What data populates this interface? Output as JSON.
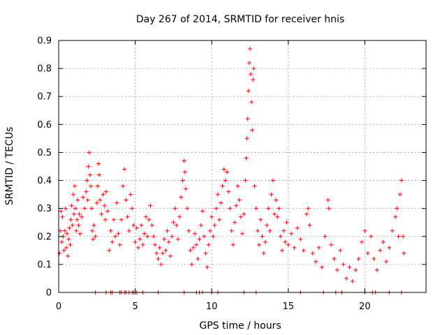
{
  "chart_data": {
    "type": "scatter",
    "title": "Day 267 of 2014, SRMTID for receiver hnis",
    "xlabel": "GPS time / hours",
    "ylabel": "SRMTID / TECUs",
    "xlim": [
      0,
      24
    ],
    "ylim": [
      0,
      0.9
    ],
    "xticks": [
      0,
      5,
      10,
      15,
      20
    ],
    "yticks": [
      0,
      0.1,
      0.2,
      0.3,
      0.4,
      0.5,
      0.6,
      0.7,
      0.8,
      0.9
    ],
    "xtick_labels": [
      "0",
      "5",
      "10",
      "15",
      "20"
    ],
    "ytick_labels": [
      "0",
      "0.1",
      "0.2",
      "0.3",
      "0.4",
      "0.5",
      "0.6",
      "0.7",
      "0.8",
      "0.9"
    ],
    "grid": true,
    "marker": "plus",
    "color": "#ff0000",
    "series": [
      {
        "name": "SRMTID",
        "points": [
          [
            0.05,
            0.14
          ],
          [
            0.1,
            0.22
          ],
          [
            0.15,
            0.29
          ],
          [
            0.2,
            0.18
          ],
          [
            0.25,
            0.27
          ],
          [
            0.3,
            0.2
          ],
          [
            0.35,
            0.15
          ],
          [
            0.4,
            0.22
          ],
          [
            0.45,
            0.3
          ],
          [
            0.5,
            0.16
          ],
          [
            0.55,
            0.21
          ],
          [
            0.6,
            0.13
          ],
          [
            0.65,
            0.19
          ],
          [
            0.7,
            0.23
          ],
          [
            0.75,
            0.17
          ],
          [
            0.8,
            0.26
          ],
          [
            0.85,
            0.31
          ],
          [
            0.9,
            0.24
          ],
          [
            0.95,
            0.35
          ],
          [
            1.0,
            0.28
          ],
          [
            1.05,
            0.38
          ],
          [
            1.1,
            0.3
          ],
          [
            1.15,
            0.22
          ],
          [
            1.2,
            0.26
          ],
          [
            1.25,
            0.33
          ],
          [
            1.3,
            0.24
          ],
          [
            1.35,
            0.28
          ],
          [
            1.4,
            0.21
          ],
          [
            1.5,
            0.27
          ],
          [
            1.6,
            0.34
          ],
          [
            1.7,
            0.3
          ],
          [
            1.8,
            0.36
          ],
          [
            1.85,
            0.4
          ],
          [
            1.9,
            0.33
          ],
          [
            1.95,
            0.45
          ],
          [
            2.0,
            0.5
          ],
          [
            2.05,
            0.42
          ],
          [
            2.1,
            0.38
          ],
          [
            2.15,
            0.3
          ],
          [
            2.2,
            0.22
          ],
          [
            2.25,
            0.19
          ],
          [
            2.3,
            0.24
          ],
          [
            2.4,
            0.2
          ],
          [
            2.5,
            0.32
          ],
          [
            2.55,
            0.38
          ],
          [
            2.6,
            0.46
          ],
          [
            2.65,
            0.42
          ],
          [
            2.7,
            0.33
          ],
          [
            2.8,
            0.28
          ],
          [
            2.9,
            0.35
          ],
          [
            3.0,
            0.31
          ],
          [
            3.05,
            0.26
          ],
          [
            3.1,
            0.36
          ],
          [
            3.2,
            0.29
          ],
          [
            3.3,
            0.15
          ],
          [
            3.4,
            0.22
          ],
          [
            3.5,
            0.18
          ],
          [
            3.6,
            0.26
          ],
          [
            3.7,
            0.2
          ],
          [
            3.8,
            0.32
          ],
          [
            3.9,
            0.21
          ],
          [
            4.0,
            0.17
          ],
          [
            4.1,
            0.26
          ],
          [
            4.2,
            0.38
          ],
          [
            4.3,
            0.44
          ],
          [
            4.4,
            0.33
          ],
          [
            4.5,
            0.27
          ],
          [
            4.6,
            0.22
          ],
          [
            4.7,
            0.35
          ],
          [
            4.8,
            0.3
          ],
          [
            4.9,
            0.24
          ],
          [
            5.0,
            0.18
          ],
          [
            5.1,
            0.23
          ],
          [
            5.2,
            0.16
          ],
          [
            5.3,
            0.19
          ],
          [
            5.4,
            0.24
          ],
          [
            5.5,
            0.17
          ],
          [
            5.6,
            0.21
          ],
          [
            5.7,
            0.27
          ],
          [
            5.8,
            0.2
          ],
          [
            5.9,
            0.26
          ],
          [
            6.0,
            0.31
          ],
          [
            6.1,
            0.24
          ],
          [
            6.2,
            0.2
          ],
          [
            6.3,
            0.17
          ],
          [
            6.4,
            0.14
          ],
          [
            6.5,
            0.12
          ],
          [
            6.6,
            0.16
          ],
          [
            6.7,
            0.1
          ],
          [
            6.8,
            0.14
          ],
          [
            6.9,
            0.19
          ],
          [
            7.0,
            0.15
          ],
          [
            7.1,
            0.22
          ],
          [
            7.2,
            0.18
          ],
          [
            7.3,
            0.13
          ],
          [
            7.4,
            0.2
          ],
          [
            7.5,
            0.25
          ],
          [
            7.6,
            0.3
          ],
          [
            7.7,
            0.24
          ],
          [
            7.8,
            0.19
          ],
          [
            7.9,
            0.27
          ],
          [
            8.0,
            0.34
          ],
          [
            8.1,
            0.4
          ],
          [
            8.2,
            0.47
          ],
          [
            8.25,
            0.43
          ],
          [
            8.3,
            0.37
          ],
          [
            8.4,
            0.3
          ],
          [
            8.5,
            0.22
          ],
          [
            8.6,
            0.15
          ],
          [
            8.7,
            0.1
          ],
          [
            8.8,
            0.16
          ],
          [
            8.9,
            0.21
          ],
          [
            9.0,
            0.17
          ],
          [
            9.1,
            0.12
          ],
          [
            9.2,
            0.19
          ],
          [
            9.3,
            0.24
          ],
          [
            9.4,
            0.29
          ],
          [
            9.5,
            0.2
          ],
          [
            9.6,
            0.14
          ],
          [
            9.7,
            0.09
          ],
          [
            9.8,
            0.17
          ],
          [
            9.9,
            0.22
          ],
          [
            10.0,
            0.27
          ],
          [
            10.1,
            0.2
          ],
          [
            10.2,
            0.24
          ],
          [
            10.3,
            0.3
          ],
          [
            10.4,
            0.35
          ],
          [
            10.5,
            0.26
          ],
          [
            10.6,
            0.32
          ],
          [
            10.7,
            0.38
          ],
          [
            10.8,
            0.44
          ],
          [
            10.9,
            0.4
          ],
          [
            11.0,
            0.43
          ],
          [
            11.1,
            0.36
          ],
          [
            11.2,
            0.3
          ],
          [
            11.3,
            0.22
          ],
          [
            11.4,
            0.17
          ],
          [
            11.5,
            0.25
          ],
          [
            11.6,
            0.31
          ],
          [
            11.7,
            0.38
          ],
          [
            11.8,
            0.33
          ],
          [
            11.9,
            0.27
          ],
          [
            12.0,
            0.21
          ],
          [
            12.1,
            0.28
          ],
          [
            12.2,
            0.4
          ],
          [
            12.25,
            0.48
          ],
          [
            12.3,
            0.55
          ],
          [
            12.35,
            0.62
          ],
          [
            12.4,
            0.72
          ],
          [
            12.45,
            0.82
          ],
          [
            12.5,
            0.87
          ],
          [
            12.55,
            0.78
          ],
          [
            12.6,
            0.68
          ],
          [
            12.65,
            0.58
          ],
          [
            12.7,
            0.76
          ],
          [
            12.75,
            0.8
          ],
          [
            12.8,
            0.38
          ],
          [
            12.9,
            0.3
          ],
          [
            13.0,
            0.22
          ],
          [
            13.1,
            0.17
          ],
          [
            13.2,
            0.26
          ],
          [
            13.3,
            0.2
          ],
          [
            13.4,
            0.14
          ],
          [
            13.5,
            0.18
          ],
          [
            13.6,
            0.24
          ],
          [
            13.7,
            0.3
          ],
          [
            13.8,
            0.22
          ],
          [
            13.9,
            0.35
          ],
          [
            14.0,
            0.4
          ],
          [
            14.1,
            0.28
          ],
          [
            14.2,
            0.33
          ],
          [
            14.3,
            0.27
          ],
          [
            14.4,
            0.3
          ],
          [
            14.5,
            0.2
          ],
          [
            14.6,
            0.15
          ],
          [
            14.7,
            0.22
          ],
          [
            14.8,
            0.18
          ],
          [
            14.9,
            0.25
          ],
          [
            15.0,
            0.17
          ],
          [
            15.2,
            0.21
          ],
          [
            15.4,
            0.16
          ],
          [
            15.6,
            0.23
          ],
          [
            15.8,
            0.19
          ],
          [
            16.0,
            0.15
          ],
          [
            16.2,
            0.28
          ],
          [
            16.3,
            0.3
          ],
          [
            16.4,
            0.24
          ],
          [
            16.6,
            0.14
          ],
          [
            16.8,
            0.11
          ],
          [
            17.0,
            0.16
          ],
          [
            17.2,
            0.09
          ],
          [
            17.4,
            0.2
          ],
          [
            17.6,
            0.33
          ],
          [
            17.65,
            0.3
          ],
          [
            17.8,
            0.17
          ],
          [
            18.0,
            0.12
          ],
          [
            18.2,
            0.08
          ],
          [
            18.4,
            0.15
          ],
          [
            18.6,
            0.1
          ],
          [
            18.8,
            0.05
          ],
          [
            19.0,
            0.09
          ],
          [
            19.2,
            0.04
          ],
          [
            19.4,
            0.08
          ],
          [
            19.6,
            0.12
          ],
          [
            19.8,
            0.18
          ],
          [
            20.0,
            0.22
          ],
          [
            20.2,
            0.14
          ],
          [
            20.4,
            0.2
          ],
          [
            20.6,
            0.12
          ],
          [
            20.8,
            0.08
          ],
          [
            21.0,
            0.15
          ],
          [
            21.2,
            0.18
          ],
          [
            21.4,
            0.11
          ],
          [
            21.6,
            0.16
          ],
          [
            21.8,
            0.22
          ],
          [
            22.0,
            0.27
          ],
          [
            22.1,
            0.3
          ],
          [
            22.2,
            0.2
          ],
          [
            22.3,
            0.35
          ],
          [
            22.4,
            0.4
          ],
          [
            22.5,
            0.2
          ],
          [
            22.55,
            0.14
          ]
        ],
        "zero_points": [
          2.4,
          3.1,
          3.4,
          3.5,
          4.0,
          4.1,
          4.3,
          4.4,
          4.6,
          4.8,
          4.9,
          5.0,
          5.1,
          5.5,
          6.5,
          8.2,
          9.0,
          9.2,
          9.4,
          10.0,
          10.4,
          12.1,
          12.9,
          15.8,
          17.3,
          18.1,
          18.5,
          20.0,
          20.5,
          20.7,
          21.6,
          22.4
        ]
      }
    ]
  }
}
